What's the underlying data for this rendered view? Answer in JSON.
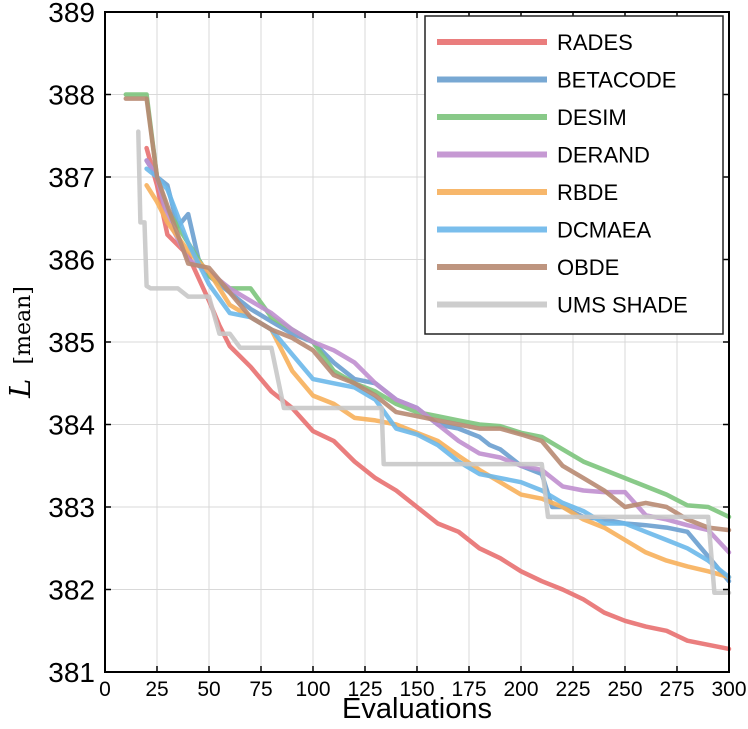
{
  "chart_data": {
    "type": "line",
    "xlabel": "Evaluations",
    "ylabel_symbol": "L",
    "ylabel_subscript": "[mean]",
    "xlim": [
      0,
      300
    ],
    "ylim": [
      381,
      389
    ],
    "xticks": [
      0,
      25,
      50,
      75,
      100,
      125,
      150,
      175,
      200,
      225,
      250,
      275,
      300
    ],
    "yticks": [
      381,
      382,
      383,
      384,
      385,
      386,
      387,
      388,
      389
    ],
    "grid": true,
    "legend_position": "top-right",
    "series": [
      {
        "name": "RADES",
        "color": "#e87070",
        "points": [
          [
            20,
            387.35
          ],
          [
            25,
            386.9
          ],
          [
            30,
            386.3
          ],
          [
            40,
            386.05
          ],
          [
            50,
            385.5
          ],
          [
            55,
            385.2
          ],
          [
            60,
            384.95
          ],
          [
            70,
            384.7
          ],
          [
            80,
            384.4
          ],
          [
            90,
            384.2
          ],
          [
            100,
            383.92
          ],
          [
            110,
            383.8
          ],
          [
            120,
            383.55
          ],
          [
            130,
            383.35
          ],
          [
            140,
            383.2
          ],
          [
            150,
            383.0
          ],
          [
            160,
            382.8
          ],
          [
            170,
            382.7
          ],
          [
            180,
            382.5
          ],
          [
            190,
            382.38
          ],
          [
            200,
            382.22
          ],
          [
            210,
            382.1
          ],
          [
            220,
            382.0
          ],
          [
            230,
            381.88
          ],
          [
            240,
            381.72
          ],
          [
            250,
            381.62
          ],
          [
            260,
            381.55
          ],
          [
            270,
            381.5
          ],
          [
            280,
            381.38
          ],
          [
            290,
            381.33
          ],
          [
            300,
            381.28
          ]
        ]
      },
      {
        "name": "BETACODE",
        "color": "#6a9fcf",
        "points": [
          [
            20,
            387.2
          ],
          [
            25,
            387.0
          ],
          [
            30,
            386.9
          ],
          [
            35,
            386.4
          ],
          [
            40,
            386.55
          ],
          [
            45,
            386.0
          ],
          [
            50,
            385.8
          ],
          [
            60,
            385.6
          ],
          [
            70,
            385.4
          ],
          [
            80,
            385.25
          ],
          [
            90,
            385.1
          ],
          [
            100,
            385.0
          ],
          [
            110,
            384.75
          ],
          [
            120,
            384.55
          ],
          [
            130,
            384.5
          ],
          [
            140,
            384.3
          ],
          [
            150,
            384.2
          ],
          [
            160,
            384.0
          ],
          [
            170,
            383.95
          ],
          [
            180,
            383.85
          ],
          [
            185,
            383.75
          ],
          [
            190,
            383.7
          ],
          [
            200,
            383.5
          ],
          [
            210,
            383.4
          ],
          [
            215,
            383.0
          ],
          [
            220,
            383.0
          ],
          [
            230,
            382.88
          ],
          [
            240,
            382.85
          ],
          [
            250,
            382.8
          ],
          [
            260,
            382.78
          ],
          [
            270,
            382.75
          ],
          [
            280,
            382.7
          ],
          [
            290,
            382.4
          ],
          [
            300,
            382.1
          ]
        ]
      },
      {
        "name": "DESIM",
        "color": "#7cc47c",
        "points": [
          [
            10,
            388.0
          ],
          [
            20,
            388.0
          ],
          [
            25,
            387.0
          ],
          [
            30,
            386.6
          ],
          [
            40,
            386.2
          ],
          [
            50,
            385.8
          ],
          [
            60,
            385.65
          ],
          [
            70,
            385.65
          ],
          [
            80,
            385.3
          ],
          [
            90,
            385.15
          ],
          [
            100,
            385.0
          ],
          [
            110,
            384.65
          ],
          [
            120,
            384.5
          ],
          [
            130,
            384.4
          ],
          [
            140,
            384.25
          ],
          [
            150,
            384.15
          ],
          [
            160,
            384.1
          ],
          [
            170,
            384.05
          ],
          [
            180,
            384.0
          ],
          [
            190,
            383.98
          ],
          [
            200,
            383.9
          ],
          [
            210,
            383.85
          ],
          [
            220,
            383.7
          ],
          [
            230,
            383.55
          ],
          [
            240,
            383.45
          ],
          [
            250,
            383.35
          ],
          [
            260,
            383.25
          ],
          [
            270,
            383.15
          ],
          [
            280,
            383.02
          ],
          [
            290,
            383.0
          ],
          [
            300,
            382.88
          ]
        ]
      },
      {
        "name": "DERAND",
        "color": "#c08fcf",
        "points": [
          [
            20,
            387.2
          ],
          [
            25,
            387.0
          ],
          [
            30,
            386.5
          ],
          [
            40,
            386.0
          ],
          [
            50,
            385.85
          ],
          [
            60,
            385.65
          ],
          [
            70,
            385.5
          ],
          [
            80,
            385.35
          ],
          [
            90,
            385.15
          ],
          [
            100,
            385.0
          ],
          [
            110,
            384.9
          ],
          [
            120,
            384.75
          ],
          [
            130,
            384.5
          ],
          [
            140,
            384.3
          ],
          [
            150,
            384.2
          ],
          [
            160,
            384.0
          ],
          [
            170,
            383.8
          ],
          [
            180,
            383.65
          ],
          [
            190,
            383.6
          ],
          [
            200,
            383.5
          ],
          [
            210,
            383.45
          ],
          [
            220,
            383.25
          ],
          [
            230,
            383.2
          ],
          [
            240,
            383.18
          ],
          [
            250,
            383.18
          ],
          [
            260,
            382.9
          ],
          [
            270,
            382.85
          ],
          [
            280,
            382.78
          ],
          [
            290,
            382.72
          ],
          [
            300,
            382.45
          ]
        ]
      },
      {
        "name": "RBDE",
        "color": "#f7b05b",
        "points": [
          [
            20,
            386.9
          ],
          [
            25,
            386.7
          ],
          [
            30,
            386.45
          ],
          [
            40,
            386.1
          ],
          [
            50,
            385.85
          ],
          [
            60,
            385.45
          ],
          [
            70,
            385.3
          ],
          [
            80,
            385.15
          ],
          [
            85,
            384.9
          ],
          [
            90,
            384.65
          ],
          [
            100,
            384.35
          ],
          [
            110,
            384.25
          ],
          [
            120,
            384.08
          ],
          [
            130,
            384.05
          ],
          [
            140,
            384.0
          ],
          [
            150,
            383.9
          ],
          [
            160,
            383.8
          ],
          [
            170,
            383.62
          ],
          [
            180,
            383.45
          ],
          [
            190,
            383.3
          ],
          [
            200,
            383.15
          ],
          [
            210,
            383.1
          ],
          [
            220,
            383.0
          ],
          [
            230,
            382.85
          ],
          [
            240,
            382.75
          ],
          [
            250,
            382.6
          ],
          [
            260,
            382.45
          ],
          [
            270,
            382.35
          ],
          [
            280,
            382.28
          ],
          [
            290,
            382.22
          ],
          [
            300,
            382.15
          ]
        ]
      },
      {
        "name": "DCMAEA",
        "color": "#6cb8ea",
        "points": [
          [
            20,
            387.1
          ],
          [
            25,
            387.0
          ],
          [
            30,
            386.85
          ],
          [
            40,
            386.2
          ],
          [
            50,
            385.7
          ],
          [
            60,
            385.35
          ],
          [
            70,
            385.3
          ],
          [
            80,
            385.15
          ],
          [
            90,
            384.85
          ],
          [
            100,
            384.55
          ],
          [
            110,
            384.5
          ],
          [
            120,
            384.45
          ],
          [
            130,
            384.3
          ],
          [
            140,
            383.95
          ],
          [
            150,
            383.88
          ],
          [
            160,
            383.75
          ],
          [
            170,
            383.55
          ],
          [
            180,
            383.4
          ],
          [
            190,
            383.35
          ],
          [
            200,
            383.3
          ],
          [
            210,
            383.2
          ],
          [
            220,
            383.05
          ],
          [
            230,
            382.95
          ],
          [
            240,
            382.8
          ],
          [
            250,
            382.8
          ],
          [
            260,
            382.7
          ],
          [
            270,
            382.6
          ],
          [
            280,
            382.5
          ],
          [
            290,
            382.35
          ],
          [
            300,
            382.15
          ]
        ]
      },
      {
        "name": "OBDE",
        "color": "#b88a72",
        "points": [
          [
            10,
            387.95
          ],
          [
            20,
            387.95
          ],
          [
            25,
            387.0
          ],
          [
            30,
            386.65
          ],
          [
            40,
            385.95
          ],
          [
            50,
            385.9
          ],
          [
            60,
            385.6
          ],
          [
            70,
            385.3
          ],
          [
            80,
            385.15
          ],
          [
            90,
            385.05
          ],
          [
            100,
            384.9
          ],
          [
            110,
            384.6
          ],
          [
            120,
            384.5
          ],
          [
            130,
            384.35
          ],
          [
            140,
            384.15
          ],
          [
            150,
            384.1
          ],
          [
            160,
            384.05
          ],
          [
            170,
            384.0
          ],
          [
            180,
            383.95
          ],
          [
            190,
            383.95
          ],
          [
            200,
            383.88
          ],
          [
            210,
            383.8
          ],
          [
            220,
            383.5
          ],
          [
            230,
            383.35
          ],
          [
            240,
            383.2
          ],
          [
            250,
            383.0
          ],
          [
            260,
            383.05
          ],
          [
            270,
            383.0
          ],
          [
            280,
            382.85
          ],
          [
            290,
            382.75
          ],
          [
            300,
            382.72
          ]
        ]
      },
      {
        "name": "UMS SHADE",
        "color": "#c8c8c8",
        "points": [
          [
            16,
            387.55
          ],
          [
            17,
            386.45
          ],
          [
            19,
            386.45
          ],
          [
            20,
            385.68
          ],
          [
            22,
            385.65
          ],
          [
            35,
            385.65
          ],
          [
            40,
            385.55
          ],
          [
            50,
            385.55
          ],
          [
            55,
            385.1
          ],
          [
            60,
            385.1
          ],
          [
            65,
            384.93
          ],
          [
            80,
            384.93
          ],
          [
            86,
            384.2
          ],
          [
            133,
            384.2
          ],
          [
            134,
            383.52
          ],
          [
            210,
            383.52
          ],
          [
            213,
            382.88
          ],
          [
            290,
            382.88
          ],
          [
            293,
            381.96
          ],
          [
            300,
            381.96
          ]
        ]
      }
    ]
  }
}
